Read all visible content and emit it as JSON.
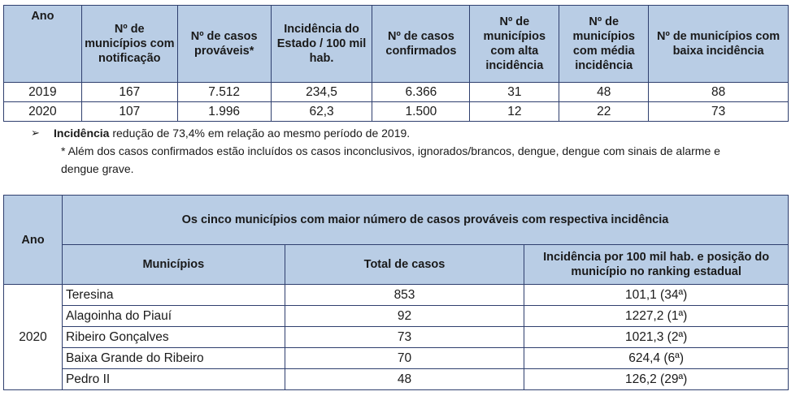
{
  "table1": {
    "headers": [
      "Ano",
      "Nº de municípios com notificação",
      "Nº de casos prováveis*",
      "Incidência do Estado / 100 mil hab.",
      "Nº de casos confirmados",
      "Nº de municípios com alta incidência",
      "Nº de municípios com média incidência",
      "Nº de municípios com baixa incidência"
    ],
    "rows": [
      [
        "2019",
        "167",
        "7.512",
        "234,5",
        "6.366",
        "31",
        "48",
        "88"
      ],
      [
        "2020",
        "107",
        "1.996",
        "62,3",
        "1.500",
        "12",
        "22",
        "73"
      ]
    ]
  },
  "notes": {
    "arrow": "➢",
    "incidence_bold": "Incidência",
    "incidence_text": " redução de 73,4% em relação ao mesmo período de 2019.",
    "footnote": "* Além dos casos confirmados estão incluídos os casos inconclusivos, ignorados/brancos, dengue, dengue com sinais de alarme e dengue grave."
  },
  "table2": {
    "ano_header": "Ano",
    "title": "Os cinco municípios com maior número de casos prováveis com respectiva incidência",
    "col_headers": [
      "Municípios",
      "Total de casos",
      "Incidência por 100 mil hab. e posição do município no ranking estadual"
    ],
    "year": "2020",
    "rows": [
      {
        "municipio": "Teresina",
        "total": "853",
        "incidencia": "101,1 (34ª)"
      },
      {
        "municipio": "Alagoinha do Piauí",
        "total": "92",
        "incidencia": "1227,2 (1ª)"
      },
      {
        "municipio": "Ribeiro Gonçalves",
        "total": "73",
        "incidencia": "1021,3 (2ª)"
      },
      {
        "municipio": "Baixa Grande do Ribeiro",
        "total": "70",
        "incidencia": "624,4 (6ª)"
      },
      {
        "municipio": "Pedro II",
        "total": "48",
        "incidencia": "126,2 (29ª)"
      }
    ]
  }
}
